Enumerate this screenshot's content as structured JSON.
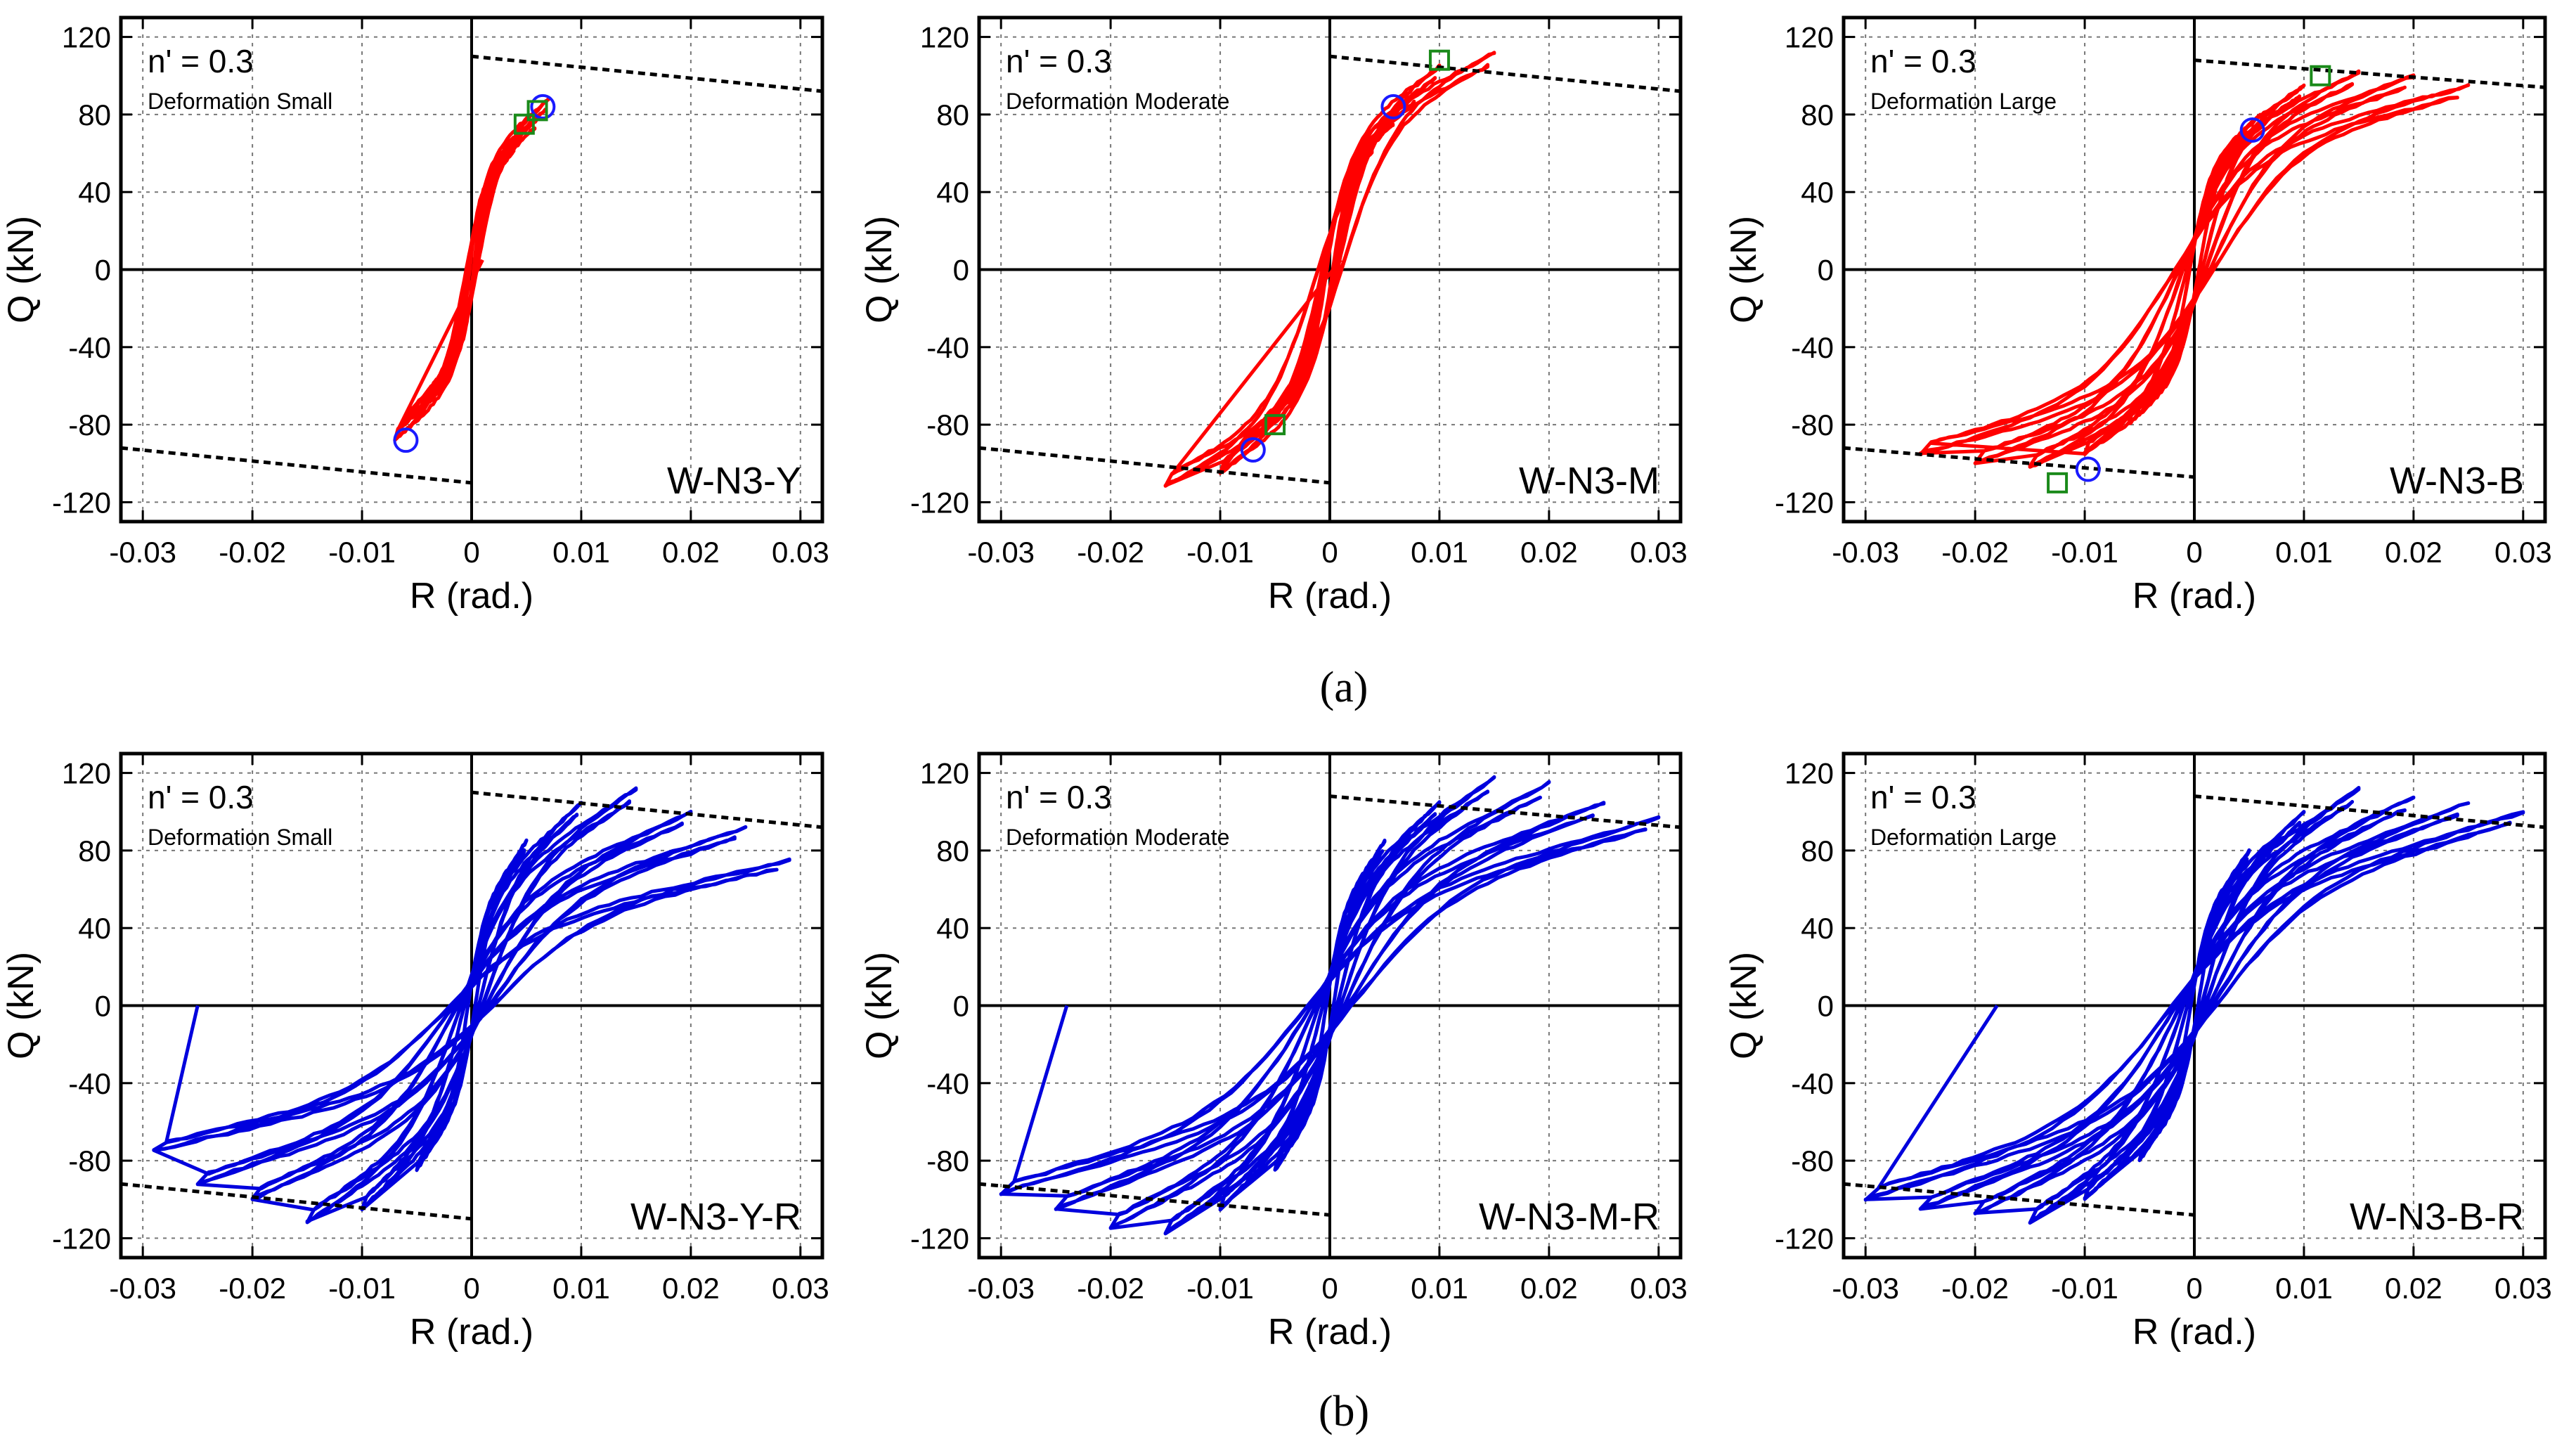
{
  "figure": {
    "row_labels": [
      "(a)",
      "(b)"
    ]
  },
  "chart_data": [
    {
      "type": "line",
      "panel_label": "W-N3-Y",
      "row": "(a)",
      "annotation_n": "n' = 0.3",
      "annotation_deformation": "Deformation Small",
      "xlabel": "R (rad.)",
      "ylabel": "Q (kN)",
      "xlim": [
        -0.032,
        0.032
      ],
      "ylim": [
        -130,
        130
      ],
      "xticks": [
        -0.03,
        -0.02,
        -0.01,
        0,
        0.01,
        0.02,
        0.03
      ],
      "xtick_labels": [
        "-0.03",
        "-0.02",
        "-0.01",
        "0",
        "0.01",
        "0.02",
        "0.03"
      ],
      "yticks": [
        -120,
        -80,
        -40,
        0,
        40,
        80,
        120
      ],
      "ytick_labels": [
        "-120",
        "-80",
        "-40",
        "0",
        "40",
        "80",
        "120"
      ],
      "grid": true,
      "series": [
        {
          "name": "hysteresis",
          "color": "#ff0000",
          "amplitudes": [
            0.0025,
            0.004,
            0.006,
            0.007
          ],
          "peaks": [
            55,
            65,
            78,
            88
          ],
          "start": [
            0,
            0
          ],
          "end": [
            0.001,
            5
          ]
        }
      ],
      "capacity_lines": [
        {
          "x": [
            0,
            0.032
          ],
          "y": [
            110,
            92
          ]
        },
        {
          "x": [
            -0.032,
            0
          ],
          "y": [
            -92,
            -110
          ]
        }
      ],
      "circle_markers": [
        {
          "x": 0.0065,
          "y": 84
        },
        {
          "x": -0.006,
          "y": -88
        }
      ],
      "square_markers": [
        {
          "x": 0.0048,
          "y": 75
        },
        {
          "x": 0.006,
          "y": 82
        }
      ]
    },
    {
      "type": "line",
      "panel_label": "W-N3-M",
      "row": "(a)",
      "annotation_n": "n' = 0.3",
      "annotation_deformation": "Deformation Moderate",
      "xlabel": "R (rad.)",
      "ylabel": "Q (kN)",
      "xlim": [
        -0.032,
        0.032
      ],
      "ylim": [
        -130,
        130
      ],
      "xticks": [
        -0.03,
        -0.02,
        -0.01,
        0,
        0.01,
        0.02,
        0.03
      ],
      "xtick_labels": [
        "-0.03",
        "-0.02",
        "-0.01",
        "0",
        "0.01",
        "0.02",
        "0.03"
      ],
      "yticks": [
        -120,
        -80,
        -40,
        0,
        40,
        80,
        120
      ],
      "ytick_labels": [
        "-120",
        "-80",
        "-40",
        "0",
        "40",
        "80",
        "120"
      ],
      "grid": true,
      "series": [
        {
          "name": "hysteresis",
          "color": "#ff0000",
          "amplitudes": [
            0.004,
            0.006,
            0.008,
            0.01,
            0.015
          ],
          "peaks": [
            65,
            80,
            92,
            105,
            112
          ],
          "start": [
            0,
            0
          ],
          "end": [
            0.001,
            5
          ]
        }
      ],
      "capacity_lines": [
        {
          "x": [
            0,
            0.032
          ],
          "y": [
            110,
            92
          ]
        },
        {
          "x": [
            -0.032,
            0
          ],
          "y": [
            -92,
            -110
          ]
        }
      ],
      "circle_markers": [
        {
          "x": 0.0058,
          "y": 84
        },
        {
          "x": -0.007,
          "y": -93
        }
      ],
      "square_markers": [
        {
          "x": 0.01,
          "y": 108
        },
        {
          "x": -0.005,
          "y": -80
        }
      ]
    },
    {
      "type": "line",
      "panel_label": "W-N3-B",
      "row": "(a)",
      "annotation_n": "n' = 0.3",
      "annotation_deformation": "Deformation Large",
      "xlabel": "R (rad.)",
      "ylabel": "Q (kN)",
      "xlim": [
        -0.032,
        0.032
      ],
      "ylim": [
        -130,
        130
      ],
      "xticks": [
        -0.03,
        -0.02,
        -0.01,
        0,
        0.01,
        0.02,
        0.03
      ],
      "xtick_labels": [
        "-0.03",
        "-0.02",
        "-0.01",
        "0",
        "0.01",
        "0.02",
        "0.03"
      ],
      "yticks": [
        -120,
        -80,
        -40,
        0,
        40,
        80,
        120
      ],
      "ytick_labels": [
        "-120",
        "-80",
        "-40",
        "0",
        "40",
        "80",
        "120"
      ],
      "grid": true,
      "series": [
        {
          "name": "hysteresis",
          "color": "#ff0000",
          "amplitudes": [
            0.006,
            0.01,
            0.015,
            0.02,
            0.025
          ],
          "peaks": [
            80,
            95,
            102,
            100,
            95
          ],
          "start": [
            0,
            0
          ],
          "end": [
            -0.01,
            -95
          ]
        }
      ],
      "capacity_lines": [
        {
          "x": [
            0,
            0.032
          ],
          "y": [
            108,
            94
          ]
        },
        {
          "x": [
            -0.032,
            0
          ],
          "y": [
            -92,
            -107
          ]
        }
      ],
      "circle_markers": [
        {
          "x": 0.0053,
          "y": 72
        },
        {
          "x": -0.0097,
          "y": -103
        }
      ],
      "square_markers": [
        {
          "x": 0.0115,
          "y": 100
        },
        {
          "x": -0.0125,
          "y": -110
        }
      ]
    },
    {
      "type": "line",
      "panel_label": "W-N3-Y-R",
      "row": "(b)",
      "annotation_n": "n' = 0.3",
      "annotation_deformation": "Deformation Small",
      "xlabel": "R (rad.)",
      "ylabel": "Q (kN)",
      "xlim": [
        -0.032,
        0.032
      ],
      "ylim": [
        -130,
        130
      ],
      "xticks": [
        -0.03,
        -0.02,
        -0.01,
        0,
        0.01,
        0.02,
        0.03
      ],
      "xtick_labels": [
        "-0.03",
        "-0.02",
        "-0.01",
        "0",
        "0.01",
        "0.02",
        "0.03"
      ],
      "yticks": [
        -120,
        -80,
        -40,
        0,
        40,
        80,
        120
      ],
      "ytick_labels": [
        "-120",
        "-80",
        "-40",
        "0",
        "40",
        "80",
        "120"
      ],
      "grid": true,
      "series": [
        {
          "name": "hysteresis",
          "color": "#0000dd",
          "amplitudes": [
            0.005,
            0.01,
            0.015,
            0.02,
            0.025,
            0.029
          ],
          "peaks": [
            85,
            105,
            112,
            100,
            92,
            75
          ],
          "start": [
            0,
            0
          ],
          "end": [
            -0.025,
            0
          ]
        }
      ],
      "capacity_lines": [
        {
          "x": [
            0,
            0.032
          ],
          "y": [
            110,
            92
          ]
        },
        {
          "x": [
            -0.032,
            0
          ],
          "y": [
            -92,
            -110
          ]
        }
      ],
      "circle_markers": [],
      "square_markers": []
    },
    {
      "type": "line",
      "panel_label": "W-N3-M-R",
      "row": "(b)",
      "annotation_n": "n' = 0.3",
      "annotation_deformation": "Deformation Moderate",
      "xlabel": "R (rad.)",
      "ylabel": "Q (kN)",
      "xlim": [
        -0.032,
        0.032
      ],
      "ylim": [
        -130,
        130
      ],
      "xticks": [
        -0.03,
        -0.02,
        -0.01,
        0,
        0.01,
        0.02,
        0.03
      ],
      "xtick_labels": [
        "-0.03",
        "-0.02",
        "-0.01",
        "0",
        "0.01",
        "0.02",
        "0.03"
      ],
      "yticks": [
        -120,
        -80,
        -40,
        0,
        40,
        80,
        120
      ],
      "ytick_labels": [
        "-120",
        "-80",
        "-40",
        "0",
        "40",
        "80",
        "120"
      ],
      "grid": true,
      "series": [
        {
          "name": "hysteresis",
          "color": "#0000dd",
          "amplitudes": [
            0.005,
            0.01,
            0.015,
            0.02,
            0.025,
            0.03
          ],
          "peaks": [
            85,
            105,
            118,
            115,
            105,
            97
          ],
          "start": [
            0,
            0
          ],
          "end": [
            -0.024,
            0
          ]
        }
      ],
      "capacity_lines": [
        {
          "x": [
            0,
            0.032
          ],
          "y": [
            108,
            92
          ]
        },
        {
          "x": [
            -0.032,
            0
          ],
          "y": [
            -92,
            -108
          ]
        }
      ],
      "circle_markers": [],
      "square_markers": []
    },
    {
      "type": "line",
      "panel_label": "W-N3-B-R",
      "row": "(b)",
      "annotation_n": "n' = 0.3",
      "annotation_deformation": "Deformation Large",
      "xlabel": "R (rad.)",
      "ylabel": "Q (kN)",
      "xlim": [
        -0.032,
        0.032
      ],
      "ylim": [
        -130,
        130
      ],
      "xticks": [
        -0.03,
        -0.02,
        -0.01,
        0,
        0.01,
        0.02,
        0.03
      ],
      "xtick_labels": [
        "-0.03",
        "-0.02",
        "-0.01",
        "0",
        "0.01",
        "0.02",
        "0.03"
      ],
      "yticks": [
        -120,
        -80,
        -40,
        0,
        40,
        80,
        120
      ],
      "ytick_labels": [
        "-120",
        "-80",
        "-40",
        "0",
        "40",
        "80",
        "120"
      ],
      "grid": true,
      "series": [
        {
          "name": "hysteresis",
          "color": "#0000dd",
          "amplitudes": [
            0.005,
            0.01,
            0.015,
            0.02,
            0.025,
            0.03
          ],
          "peaks": [
            80,
            100,
            112,
            108,
            105,
            100
          ],
          "start": [
            0,
            0
          ],
          "end": [
            -0.018,
            0
          ]
        }
      ],
      "capacity_lines": [
        {
          "x": [
            0,
            0.032
          ],
          "y": [
            108,
            92
          ]
        },
        {
          "x": [
            -0.032,
            0
          ],
          "y": [
            -92,
            -108
          ]
        }
      ],
      "circle_markers": [],
      "square_markers": []
    }
  ]
}
